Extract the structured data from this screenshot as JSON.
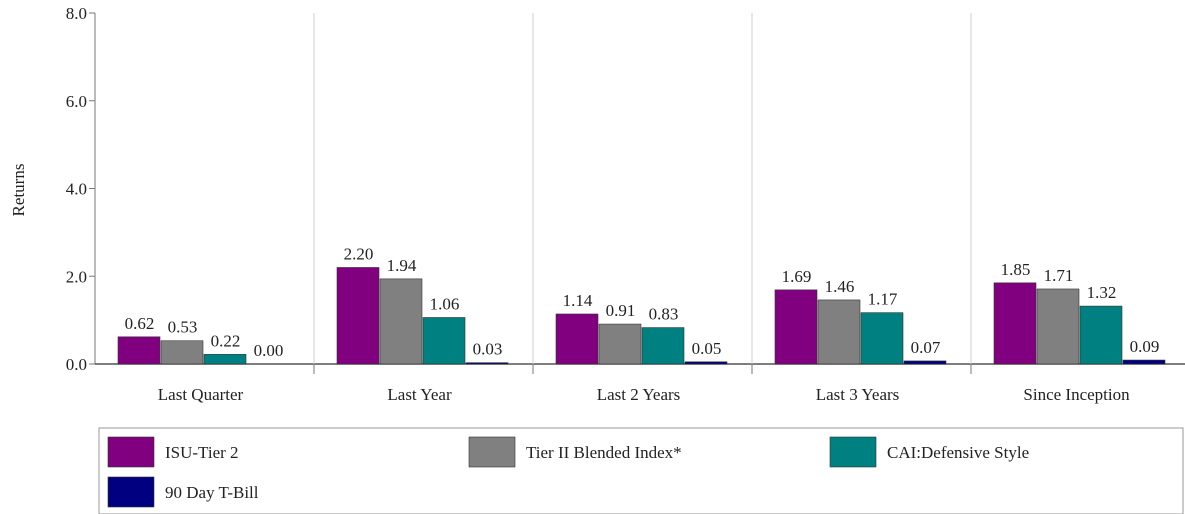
{
  "chart_data": {
    "type": "bar",
    "ylabel": "Returns",
    "ylim": [
      0,
      8
    ],
    "yticks": [
      "0.0",
      "2.0",
      "4.0",
      "6.0",
      "8.0"
    ],
    "grid": "vertical separators between categories",
    "legend_position": "bottom",
    "categories": [
      "Last Quarter",
      "Last Year",
      "Last 2 Years",
      "Last 3 Years",
      "Since Inception"
    ],
    "series": [
      {
        "name": "ISU-Tier 2",
        "color": "#800080",
        "values": [
          0.62,
          2.2,
          1.14,
          1.69,
          1.85
        ],
        "labels": [
          "0.62",
          "2.20",
          "1.14",
          "1.69",
          "1.85"
        ]
      },
      {
        "name": "Tier II Blended Index*",
        "color": "#808080",
        "values": [
          0.53,
          1.94,
          0.91,
          1.46,
          1.71
        ],
        "labels": [
          "0.53",
          "1.94",
          "0.91",
          "1.46",
          "1.71"
        ]
      },
      {
        "name": "CAI:Defensive Style",
        "color": "#008080",
        "values": [
          0.22,
          1.06,
          0.83,
          1.17,
          1.32
        ],
        "labels": [
          "0.22",
          "1.06",
          "0.83",
          "1.17",
          "1.32"
        ]
      },
      {
        "name": "90 Day T-Bill",
        "color": "#000080",
        "values": [
          0.0,
          0.03,
          0.05,
          0.07,
          0.09
        ],
        "labels": [
          "0.00",
          "0.03",
          "0.05",
          "0.07",
          "0.09"
        ]
      }
    ]
  }
}
